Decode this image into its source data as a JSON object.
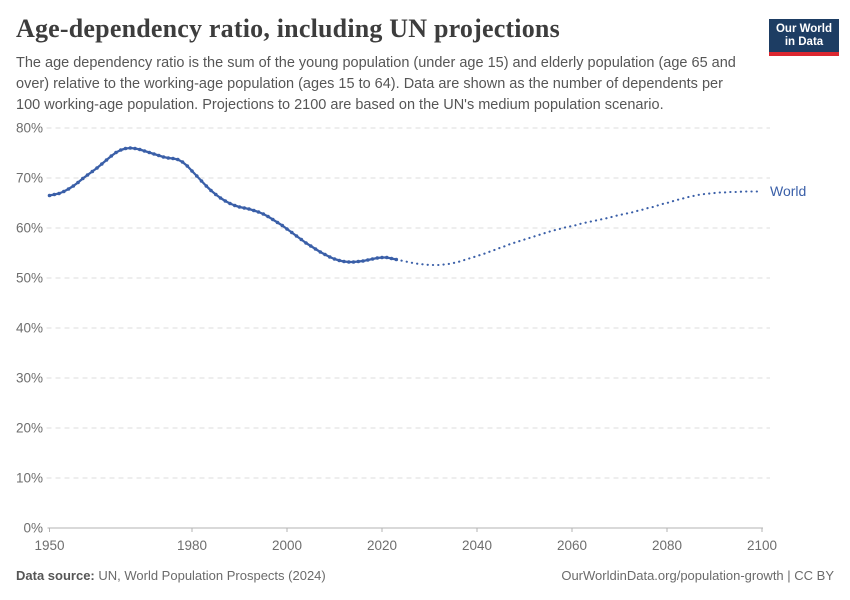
{
  "header": {
    "title": "Age-dependency ratio, including UN projections",
    "subtitle_lines": [
      "The age dependency ratio is the sum of the young population (under age 15) and elderly population (age 65 and",
      "over) relative to the working-age population (ages 15 to 64). Data are shown as the number of dependents per",
      "100 working-age population. Projections to 2100 are based on the UN's medium population scenario."
    ],
    "logo": {
      "line1": "Our World",
      "line2": "in Data",
      "bg_color": "#1d3d63",
      "accent_color": "#dc2730"
    }
  },
  "chart_data": {
    "type": "line",
    "title": "Age-dependency ratio, including UN projections",
    "xlabel": "",
    "ylabel": "",
    "x_range": [
      1950,
      2100
    ],
    "y_range": [
      0,
      80
    ],
    "x_ticks": [
      1950,
      1980,
      2000,
      2020,
      2040,
      2060,
      2080,
      2100
    ],
    "y_ticks": [
      0,
      10,
      20,
      30,
      40,
      50,
      60,
      70,
      80
    ],
    "y_tick_suffix": "%",
    "grid": true,
    "line_color": "#3a5fa8",
    "end_label": "World",
    "series": [
      {
        "name": "World (historical)",
        "style": "solid_with_markers",
        "start_year": 1950,
        "values": [
          66.5,
          66.7,
          66.9,
          67.3,
          67.8,
          68.4,
          69.1,
          69.9,
          70.6,
          71.3,
          72.0,
          72.8,
          73.6,
          74.4,
          75.1,
          75.6,
          75.9,
          76.0,
          75.9,
          75.7,
          75.4,
          75.1,
          74.8,
          74.5,
          74.2,
          74.0,
          73.9,
          73.7,
          73.2,
          72.4,
          71.4,
          70.4,
          69.4,
          68.4,
          67.5,
          66.7,
          66.0,
          65.4,
          64.9,
          64.5,
          64.2,
          64.0,
          63.8,
          63.5,
          63.2,
          62.8,
          62.3,
          61.7,
          61.1,
          60.5,
          59.8,
          59.1,
          58.4,
          57.7,
          57.0,
          56.4,
          55.8,
          55.2,
          54.7,
          54.2,
          53.8,
          53.5,
          53.3,
          53.2,
          53.2,
          53.3,
          53.4,
          53.6,
          53.8,
          54.0,
          54.1,
          54.1,
          53.9,
          53.7
        ]
      },
      {
        "name": "World (UN medium projection)",
        "style": "dotted",
        "start_year": 2023,
        "values": [
          53.7,
          53.5,
          53.3,
          53.1,
          52.9,
          52.8,
          52.7,
          52.6,
          52.6,
          52.6,
          52.7,
          52.8,
          53.0,
          53.2,
          53.5,
          53.8,
          54.1,
          54.4,
          54.7,
          55.0,
          55.4,
          55.7,
          56.1,
          56.4,
          56.8,
          57.1,
          57.4,
          57.7,
          58.0,
          58.3,
          58.6,
          58.9,
          59.2,
          59.5,
          59.7,
          60.0,
          60.2,
          60.4,
          60.6,
          60.9,
          61.1,
          61.3,
          61.5,
          61.7,
          61.9,
          62.1,
          62.4,
          62.6,
          62.8,
          63.0,
          63.2,
          63.5,
          63.7,
          64.0,
          64.2,
          64.5,
          64.8,
          65.0,
          65.3,
          65.6,
          65.8,
          66.1,
          66.3,
          66.5,
          66.7,
          66.8,
          66.9,
          67.0,
          67.1,
          67.1,
          67.2,
          67.2,
          67.2,
          67.3,
          67.3,
          67.3,
          67.3,
          67.3
        ]
      }
    ]
  },
  "footer": {
    "source_label": "Data source:",
    "source_text": " UN, World Population Prospects (2024)",
    "link_text": "OurWorldinData.org/population-growth | CC BY"
  }
}
